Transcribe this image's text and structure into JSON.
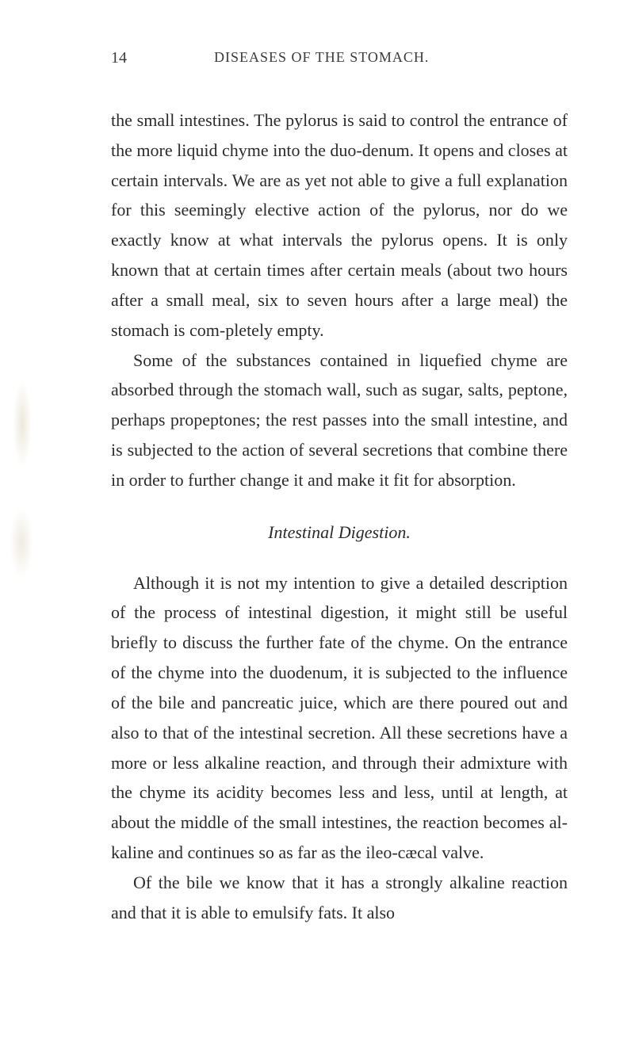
{
  "page": {
    "number": "14",
    "runningTitle": "DISEASES OF THE STOMACH."
  },
  "paragraphs": {
    "p1": "the small intestines. The pylorus is said to control the entrance of the more liquid chyme into the duo-denum. It opens and closes at certain intervals. We are as yet not able to give a full explanation for this seemingly elective action of the pylorus, nor do we exactly know at what intervals the pylorus opens. It is only known that at certain times after certain meals (about two hours after a small meal, six to seven hours after a large meal) the stomach is com-pletely empty.",
    "p2": "Some of the substances contained in liquefied chyme are absorbed through the stomach wall, such as sugar, salts, peptone, perhaps propeptones; the rest passes into the small intestine, and is subjected to the action of several secretions that combine there in order to further change it and make it fit for absorption.",
    "sectionTitle": "Intestinal Digestion.",
    "p3": "Although it is not my intention to give a detailed description of the process of intestinal digestion, it might still be useful briefly to discuss the further fate of the chyme. On the entrance of the chyme into the duodenum, it is subjected to the influence of the bile and pancreatic juice, which are there poured out and also to that of the intestinal secretion. All these secretions have a more or less alkaline reaction, and through their admixture with the chyme its acidity becomes less and less, until at length, at about the middle of the small intestines, the reaction becomes al-kaline and continues so as far as the ileo-cæcal valve.",
    "p4": "Of the bile we know that it has a strongly alkaline reaction and that it is able to emulsify fats. It also"
  },
  "colors": {
    "background": "#ffffff",
    "text": "#2b2b2b",
    "headerText": "#3a3a3a"
  },
  "typography": {
    "bodyFontSize": 22,
    "headerFontSize": 18,
    "pageNumFontSize": 20,
    "lineHeight": 1.72,
    "fontFamily": "Georgia, Times New Roman, serif"
  }
}
